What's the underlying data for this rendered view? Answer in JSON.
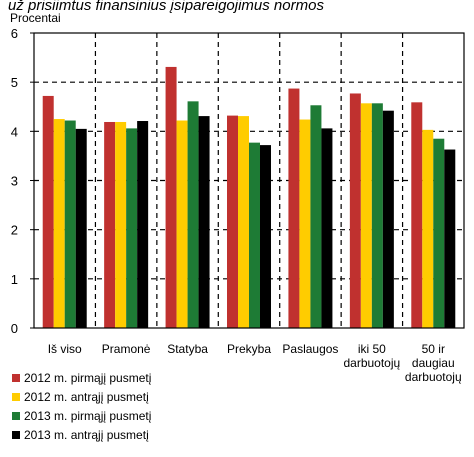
{
  "header": {
    "title_fragment": "už prisiimtus finansinius įsipareigojimus normos",
    "unit_label": "Procentai"
  },
  "chart_data": {
    "type": "bar",
    "title": "už prisiimtus finansinius įsipareigojimus normos",
    "ylabel": "Procentai",
    "xlabel": "",
    "ylim": [
      0,
      6
    ],
    "yticks": [
      "0",
      "1",
      "2",
      "3",
      "4",
      "5",
      "6"
    ],
    "grid": "dashed",
    "legend_position": "bottom-left",
    "categories": [
      [
        "Iš viso"
      ],
      [
        "Pramonė"
      ],
      [
        "Statyba"
      ],
      [
        "Prekyba"
      ],
      [
        "Paslaugos"
      ],
      [
        "iki 50",
        "darbuotojų"
      ],
      [
        "50 ir",
        "daugiau",
        "darbuotojų"
      ]
    ],
    "series": [
      {
        "name": "2012 m. pirmąjį pusmetį",
        "color": "#c0312f",
        "values": [
          4.72,
          4.19,
          5.31,
          4.32,
          4.87,
          4.77,
          4.59
        ]
      },
      {
        "name": "2012 m. antrąjį pusmetį",
        "color": "#ffcc00",
        "values": [
          4.25,
          4.19,
          4.22,
          4.31,
          4.24,
          4.57,
          4.03
        ]
      },
      {
        "name": "2013 m. pirmąjį pusmetį",
        "color": "#1e7b35",
        "values": [
          4.22,
          4.06,
          4.61,
          3.77,
          4.53,
          4.57,
          3.85
        ]
      },
      {
        "name": "2013 m. antrąjį pusmetį",
        "color": "#000000",
        "values": [
          4.05,
          4.21,
          4.31,
          3.72,
          4.06,
          4.42,
          3.63
        ]
      }
    ]
  }
}
